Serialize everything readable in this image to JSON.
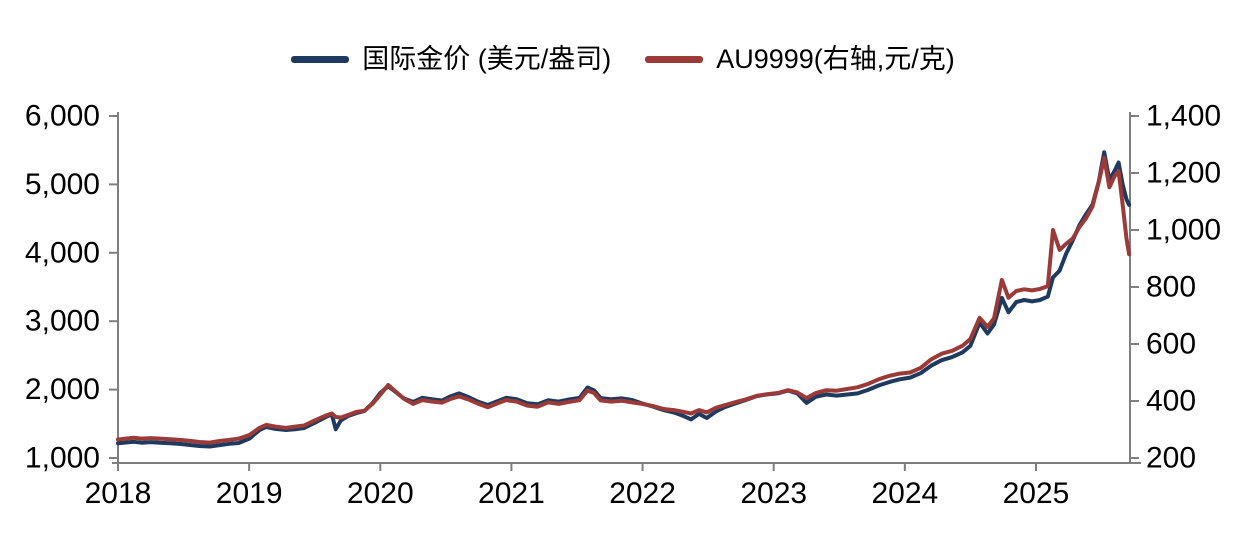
{
  "chart_data": {
    "type": "line",
    "title": "",
    "legend_position": "top",
    "grid": false,
    "background": "#ffffff",
    "axis_color": "#7f7f7f",
    "text_color": "#000000",
    "x_axis": {
      "min": 2018.0,
      "max": 2025.72,
      "ticks": [
        2018,
        2019,
        2020,
        2021,
        2022,
        2023,
        2024,
        2025
      ],
      "tick_labels": [
        "2018",
        "2019",
        "2020",
        "2021",
        "2022",
        "2023",
        "2024",
        "2025"
      ]
    },
    "left_axis": {
      "min": 1000,
      "max": 6000,
      "ticks": [
        1000,
        2000,
        3000,
        4000,
        5000,
        6000
      ],
      "tick_labels": [
        "1,000",
        "2,000",
        "3,000",
        "4,000",
        "5,000",
        "6,000"
      ]
    },
    "right_axis": {
      "min": 200,
      "max": 1400,
      "ticks": [
        200,
        400,
        600,
        800,
        1000,
        1200,
        1400
      ],
      "tick_labels": [
        "200",
        "400",
        "600",
        "800",
        "1,000",
        "1,200",
        "1,400"
      ]
    },
    "series": [
      {
        "name": "国际金价 (美元/盎司)",
        "axis": "left",
        "color": "#1f3a5f",
        "points": [
          [
            2018.0,
            1215
          ],
          [
            2018.06,
            1227
          ],
          [
            2018.12,
            1237
          ],
          [
            2018.18,
            1223
          ],
          [
            2018.25,
            1233
          ],
          [
            2018.32,
            1223
          ],
          [
            2018.4,
            1217
          ],
          [
            2018.48,
            1205
          ],
          [
            2018.55,
            1190
          ],
          [
            2018.62,
            1175
          ],
          [
            2018.7,
            1168
          ],
          [
            2018.78,
            1190
          ],
          [
            2018.85,
            1207
          ],
          [
            2018.92,
            1220
          ],
          [
            2019.0,
            1280
          ],
          [
            2019.08,
            1410
          ],
          [
            2019.13,
            1455
          ],
          [
            2019.2,
            1425
          ],
          [
            2019.28,
            1410
          ],
          [
            2019.35,
            1420
          ],
          [
            2019.42,
            1438
          ],
          [
            2019.5,
            1515
          ],
          [
            2019.58,
            1595
          ],
          [
            2019.63,
            1640
          ],
          [
            2019.66,
            1420
          ],
          [
            2019.7,
            1550
          ],
          [
            2019.76,
            1618
          ],
          [
            2019.82,
            1658
          ],
          [
            2019.88,
            1688
          ],
          [
            2019.94,
            1800
          ],
          [
            2020.0,
            1950
          ],
          [
            2020.06,
            2050
          ],
          [
            2020.12,
            1960
          ],
          [
            2020.18,
            1870
          ],
          [
            2020.25,
            1820
          ],
          [
            2020.32,
            1880
          ],
          [
            2020.4,
            1858
          ],
          [
            2020.47,
            1840
          ],
          [
            2020.54,
            1905
          ],
          [
            2020.6,
            1945
          ],
          [
            2020.68,
            1885
          ],
          [
            2020.75,
            1820
          ],
          [
            2020.82,
            1775
          ],
          [
            2020.9,
            1835
          ],
          [
            2020.96,
            1880
          ],
          [
            2021.04,
            1860
          ],
          [
            2021.12,
            1800
          ],
          [
            2021.2,
            1785
          ],
          [
            2021.28,
            1845
          ],
          [
            2021.36,
            1825
          ],
          [
            2021.44,
            1855
          ],
          [
            2021.52,
            1880
          ],
          [
            2021.58,
            2030
          ],
          [
            2021.63,
            1990
          ],
          [
            2021.68,
            1875
          ],
          [
            2021.76,
            1860
          ],
          [
            2021.84,
            1872
          ],
          [
            2021.92,
            1848
          ],
          [
            2022.0,
            1795
          ],
          [
            2022.08,
            1752
          ],
          [
            2022.16,
            1700
          ],
          [
            2022.24,
            1665
          ],
          [
            2022.31,
            1615
          ],
          [
            2022.37,
            1565
          ],
          [
            2022.43,
            1645
          ],
          [
            2022.49,
            1585
          ],
          [
            2022.56,
            1680
          ],
          [
            2022.63,
            1745
          ],
          [
            2022.71,
            1798
          ],
          [
            2022.79,
            1850
          ],
          [
            2022.87,
            1905
          ],
          [
            2022.95,
            1930
          ],
          [
            2023.03,
            1945
          ],
          [
            2023.11,
            1985
          ],
          [
            2023.18,
            1945
          ],
          [
            2023.25,
            1805
          ],
          [
            2023.32,
            1895
          ],
          [
            2023.4,
            1928
          ],
          [
            2023.48,
            1912
          ],
          [
            2023.56,
            1928
          ],
          [
            2023.64,
            1945
          ],
          [
            2023.72,
            1995
          ],
          [
            2023.8,
            2060
          ],
          [
            2023.88,
            2110
          ],
          [
            2023.96,
            2150
          ],
          [
            2024.04,
            2175
          ],
          [
            2024.12,
            2240
          ],
          [
            2024.2,
            2350
          ],
          [
            2024.28,
            2430
          ],
          [
            2024.36,
            2475
          ],
          [
            2024.44,
            2545
          ],
          [
            2024.5,
            2640
          ],
          [
            2024.57,
            2980
          ],
          [
            2024.63,
            2820
          ],
          [
            2024.68,
            2950
          ],
          [
            2024.74,
            3340
          ],
          [
            2024.79,
            3130
          ],
          [
            2024.85,
            3280
          ],
          [
            2024.91,
            3310
          ],
          [
            2024.97,
            3290
          ],
          [
            2025.03,
            3310
          ],
          [
            2025.09,
            3360
          ],
          [
            2025.13,
            3640
          ],
          [
            2025.18,
            3740
          ],
          [
            2025.23,
            3990
          ],
          [
            2025.28,
            4180
          ],
          [
            2025.33,
            4400
          ],
          [
            2025.38,
            4560
          ],
          [
            2025.43,
            4700
          ],
          [
            2025.48,
            5050
          ],
          [
            2025.52,
            5470
          ],
          [
            2025.56,
            5060
          ],
          [
            2025.6,
            5200
          ],
          [
            2025.63,
            5320
          ],
          [
            2025.66,
            5000
          ],
          [
            2025.69,
            4780
          ],
          [
            2025.71,
            4700
          ]
        ]
      },
      {
        "name": "AU9999(右轴,元/克)",
        "axis": "right",
        "color": "#9c3a38",
        "points": [
          [
            2018.0,
            265
          ],
          [
            2018.06,
            268
          ],
          [
            2018.12,
            271
          ],
          [
            2018.18,
            268
          ],
          [
            2018.25,
            270
          ],
          [
            2018.32,
            268
          ],
          [
            2018.4,
            266
          ],
          [
            2018.48,
            263
          ],
          [
            2018.55,
            260
          ],
          [
            2018.62,
            256
          ],
          [
            2018.7,
            254
          ],
          [
            2018.78,
            260
          ],
          [
            2018.85,
            264
          ],
          [
            2018.92,
            268
          ],
          [
            2019.0,
            280
          ],
          [
            2019.08,
            306
          ],
          [
            2019.13,
            316
          ],
          [
            2019.2,
            310
          ],
          [
            2019.28,
            306
          ],
          [
            2019.35,
            310
          ],
          [
            2019.42,
            314
          ],
          [
            2019.5,
            332
          ],
          [
            2019.58,
            348
          ],
          [
            2019.63,
            356
          ],
          [
            2019.66,
            344
          ],
          [
            2019.7,
            342
          ],
          [
            2019.76,
            352
          ],
          [
            2019.82,
            362
          ],
          [
            2019.88,
            366
          ],
          [
            2019.94,
            390
          ],
          [
            2020.0,
            422
          ],
          [
            2020.06,
            456
          ],
          [
            2020.12,
            432
          ],
          [
            2020.18,
            408
          ],
          [
            2020.25,
            390
          ],
          [
            2020.32,
            403
          ],
          [
            2020.4,
            398
          ],
          [
            2020.47,
            394
          ],
          [
            2020.54,
            408
          ],
          [
            2020.6,
            416
          ],
          [
            2020.68,
            404
          ],
          [
            2020.75,
            390
          ],
          [
            2020.82,
            378
          ],
          [
            2020.9,
            393
          ],
          [
            2020.96,
            403
          ],
          [
            2021.04,
            398
          ],
          [
            2021.12,
            384
          ],
          [
            2021.2,
            380
          ],
          [
            2021.28,
            395
          ],
          [
            2021.36,
            390
          ],
          [
            2021.44,
            397
          ],
          [
            2021.52,
            403
          ],
          [
            2021.58,
            437
          ],
          [
            2021.63,
            428
          ],
          [
            2021.68,
            402
          ],
          [
            2021.76,
            398
          ],
          [
            2021.84,
            401
          ],
          [
            2021.92,
            395
          ],
          [
            2022.0,
            390
          ],
          [
            2022.08,
            382
          ],
          [
            2022.16,
            372
          ],
          [
            2022.24,
            368
          ],
          [
            2022.31,
            362
          ],
          [
            2022.37,
            356
          ],
          [
            2022.43,
            368
          ],
          [
            2022.49,
            360
          ],
          [
            2022.56,
            376
          ],
          [
            2022.63,
            386
          ],
          [
            2022.71,
            396
          ],
          [
            2022.79,
            406
          ],
          [
            2022.87,
            418
          ],
          [
            2022.95,
            424
          ],
          [
            2023.03,
            428
          ],
          [
            2023.11,
            438
          ],
          [
            2023.18,
            430
          ],
          [
            2023.25,
            410
          ],
          [
            2023.32,
            428
          ],
          [
            2023.4,
            438
          ],
          [
            2023.48,
            436
          ],
          [
            2023.56,
            442
          ],
          [
            2023.64,
            448
          ],
          [
            2023.72,
            460
          ],
          [
            2023.8,
            476
          ],
          [
            2023.88,
            488
          ],
          [
            2023.96,
            496
          ],
          [
            2024.04,
            500
          ],
          [
            2024.12,
            516
          ],
          [
            2024.2,
            546
          ],
          [
            2024.28,
            566
          ],
          [
            2024.36,
            576
          ],
          [
            2024.44,
            594
          ],
          [
            2024.5,
            618
          ],
          [
            2024.57,
            692
          ],
          [
            2024.63,
            660
          ],
          [
            2024.68,
            690
          ],
          [
            2024.74,
            825
          ],
          [
            2024.79,
            762
          ],
          [
            2024.85,
            786
          ],
          [
            2024.91,
            792
          ],
          [
            2024.97,
            788
          ],
          [
            2025.03,
            793
          ],
          [
            2025.09,
            803
          ],
          [
            2025.13,
            1000
          ],
          [
            2025.18,
            930
          ],
          [
            2025.23,
            952
          ],
          [
            2025.28,
            970
          ],
          [
            2025.33,
            1010
          ],
          [
            2025.38,
            1040
          ],
          [
            2025.43,
            1082
          ],
          [
            2025.48,
            1170
          ],
          [
            2025.52,
            1253
          ],
          [
            2025.56,
            1150
          ],
          [
            2025.6,
            1190
          ],
          [
            2025.63,
            1206
          ],
          [
            2025.66,
            1090
          ],
          [
            2025.69,
            970
          ],
          [
            2025.71,
            915
          ]
        ]
      }
    ]
  }
}
